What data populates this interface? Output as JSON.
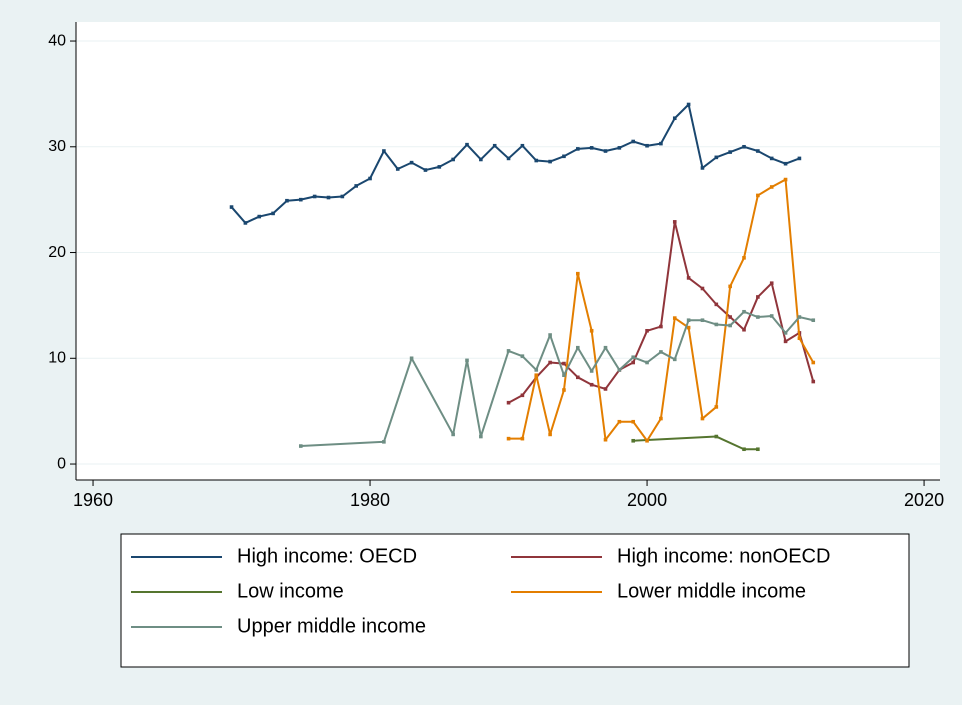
{
  "chart_data": {
    "type": "line",
    "xlim": [
      1958.77,
      2021.15
    ],
    "xticks": [
      1960,
      1980,
      2000,
      2020
    ],
    "ylim": [
      -1.51,
      41.8
    ],
    "yticks": [
      0,
      10,
      20,
      30,
      40
    ],
    "grid": true,
    "legend": "bottom",
    "markers": true,
    "series": [
      {
        "name": "High income: OECD",
        "color": "#1a476f",
        "x": [
          1970,
          1971,
          1972,
          1973,
          1974,
          1975,
          1976,
          1977,
          1978,
          1979,
          1980,
          1981,
          1982,
          1983,
          1984,
          1985,
          1986,
          1987,
          1988,
          1989,
          1990,
          1991,
          1992,
          1993,
          1994,
          1995,
          1996,
          1997,
          1998,
          1999,
          2000,
          2001,
          2002,
          2003,
          2004,
          2005,
          2006,
          2007,
          2008,
          2009,
          2010,
          2011
        ],
        "values": [
          24.3,
          22.8,
          23.4,
          23.7,
          24.9,
          25.0,
          25.3,
          25.2,
          25.3,
          26.3,
          27.0,
          29.6,
          27.9,
          28.5,
          27.8,
          28.1,
          28.8,
          30.2,
          28.8,
          30.1,
          28.9,
          30.1,
          28.7,
          28.6,
          29.1,
          29.8,
          29.9,
          29.6,
          29.9,
          30.5,
          30.1,
          30.3,
          32.7,
          34.0,
          28.0,
          29.0,
          29.5,
          30.0,
          29.6,
          28.9,
          28.4,
          28.9
        ]
      },
      {
        "name": "High income: nonOECD",
        "color": "#90353b",
        "x": [
          1990,
          1991,
          1992,
          1993,
          1994,
          1995,
          1996,
          1997,
          1998,
          1999,
          2000,
          2001,
          2002,
          2003,
          2004,
          2005,
          2006,
          2007,
          2008,
          2009,
          2010,
          2011,
          2012
        ],
        "values": [
          5.8,
          6.5,
          8.2,
          9.6,
          9.5,
          8.2,
          7.5,
          7.1,
          8.9,
          9.6,
          12.6,
          13.0,
          22.9,
          17.6,
          16.6,
          15.1,
          13.9,
          12.7,
          15.8,
          17.1,
          11.6,
          12.4,
          7.8
        ]
      },
      {
        "name": "Low income",
        "color": "#55752f",
        "x": [
          1999,
          2005,
          2007,
          2008
        ],
        "values": [
          2.2,
          2.6,
          1.4,
          1.4
        ]
      },
      {
        "name": "Lower middle income",
        "color": "#e37e00",
        "x": [
          1990,
          1991,
          1992,
          1993,
          1994,
          1995,
          1996,
          1997,
          1998,
          1999,
          2000,
          2001,
          2002,
          2003,
          2004,
          2005,
          2006,
          2007,
          2008,
          2009,
          2010,
          2011,
          2012
        ],
        "values": [
          2.4,
          2.4,
          8.4,
          2.8,
          7.0,
          18.0,
          12.6,
          2.3,
          4.0,
          4.0,
          2.2,
          4.3,
          13.8,
          12.9,
          4.3,
          5.4,
          16.8,
          19.5,
          25.4,
          26.2,
          26.9,
          11.9,
          9.6
        ]
      },
      {
        "name": "Upper middle income",
        "color": "#6e8e84",
        "x": [
          1975,
          1981,
          1983,
          1986,
          1987,
          1988,
          1990,
          1991,
          1992,
          1993,
          1994,
          1995,
          1996,
          1997,
          1998,
          1999,
          2000,
          2001,
          2002,
          2003,
          2004,
          2005,
          2006,
          2007,
          2008,
          2009,
          2010,
          2011,
          2012
        ],
        "values": [
          1.7,
          2.1,
          10.0,
          2.8,
          9.8,
          2.6,
          10.7,
          10.2,
          8.9,
          12.2,
          8.4,
          11.0,
          8.8,
          11.0,
          8.9,
          10.1,
          9.6,
          10.6,
          9.9,
          13.6,
          13.6,
          13.2,
          13.1,
          14.4,
          13.9,
          14.0,
          12.4,
          13.9,
          13.6
        ]
      }
    ]
  }
}
